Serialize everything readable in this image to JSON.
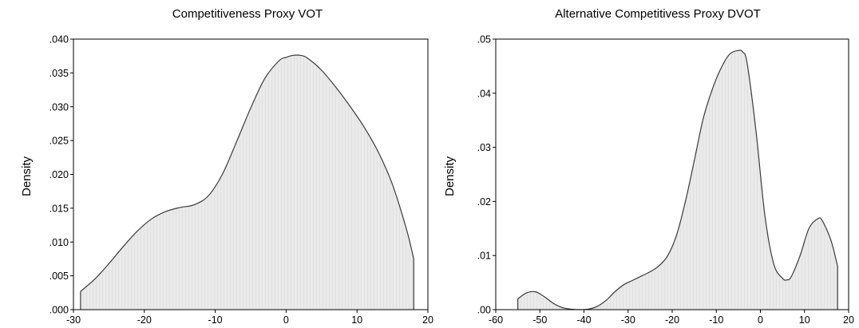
{
  "colors": {
    "fill": "#eaeaea",
    "fill_stripe": "#e0e0e0",
    "line": "#3a3a3a",
    "frame": "#000000"
  },
  "chart_data": [
    {
      "type": "area",
      "title": "Competitiveness Proxy VOT",
      "xlabel": "",
      "ylabel": "Density",
      "xlim": [
        -30,
        20
      ],
      "ylim": [
        0,
        0.04
      ],
      "xticks": [
        -30,
        -20,
        -10,
        0,
        10,
        20
      ],
      "xtick_labels": [
        "-30",
        "-20",
        "-10",
        "0",
        "10",
        "20"
      ],
      "yticks": [
        0,
        0.005,
        0.01,
        0.015,
        0.02,
        0.025,
        0.03,
        0.035,
        0.04
      ],
      "ytick_labels": [
        ".000",
        ".005",
        ".010",
        ".015",
        ".020",
        ".025",
        ".030",
        ".035",
        ".040"
      ],
      "grid": false,
      "series": [
        {
          "x": [
            -29,
            -27,
            -25,
            -23,
            -21,
            -19,
            -17,
            -15,
            -13,
            -11,
            -9,
            -7,
            -5,
            -3,
            -1,
            0,
            1,
            2,
            3,
            5,
            7,
            9,
            11,
            13,
            15,
            17,
            18
          ],
          "y": [
            0.0027,
            0.0045,
            0.0068,
            0.0093,
            0.0116,
            0.0134,
            0.0145,
            0.0151,
            0.0155,
            0.0168,
            0.02,
            0.0248,
            0.0298,
            0.0342,
            0.0368,
            0.0373,
            0.0376,
            0.0376,
            0.0372,
            0.0354,
            0.0329,
            0.0301,
            0.027,
            0.0233,
            0.0185,
            0.0118,
            0.0075
          ]
        }
      ]
    },
    {
      "type": "area",
      "title": "Alternative Competitivess Proxy DVOT",
      "xlabel": "",
      "ylabel": "Density",
      "xlim": [
        -60,
        20
      ],
      "ylim": [
        0,
        0.05
      ],
      "xticks": [
        -60,
        -50,
        -40,
        -30,
        -20,
        -10,
        0,
        10,
        20
      ],
      "xtick_labels": [
        "-60",
        "-50",
        "-40",
        "-30",
        "-20",
        "-10",
        "0",
        "10",
        "20"
      ],
      "yticks": [
        0,
        0.01,
        0.02,
        0.03,
        0.04,
        0.05
      ],
      "ytick_labels": [
        ".00",
        ".01",
        ".02",
        ".03",
        ".04",
        ".05"
      ],
      "grid": false,
      "series": [
        {
          "x": [
            -55,
            -53,
            -51,
            -49,
            -47,
            -45,
            -43,
            -41,
            -39,
            -37,
            -35,
            -33,
            -31,
            -29,
            -27,
            -25,
            -23,
            -21,
            -19,
            -17,
            -15,
            -13,
            -11,
            -9,
            -7,
            -5,
            -4,
            -3,
            -1,
            1,
            3,
            5,
            6,
            7,
            9,
            11,
            13,
            14,
            16,
            17.5
          ],
          "y": [
            0.002,
            0.0031,
            0.0033,
            0.0024,
            0.0012,
            0.0004,
            0.0001,
            0.0,
            0.0001,
            0.0006,
            0.0017,
            0.0033,
            0.0046,
            0.0054,
            0.0062,
            0.007,
            0.0081,
            0.01,
            0.0138,
            0.02,
            0.0275,
            0.0352,
            0.0405,
            0.0445,
            0.0472,
            0.0479,
            0.0476,
            0.0455,
            0.033,
            0.0175,
            0.0085,
            0.0058,
            0.0055,
            0.0061,
            0.01,
            0.015,
            0.0168,
            0.0165,
            0.0128,
            0.008
          ]
        }
      ]
    }
  ]
}
